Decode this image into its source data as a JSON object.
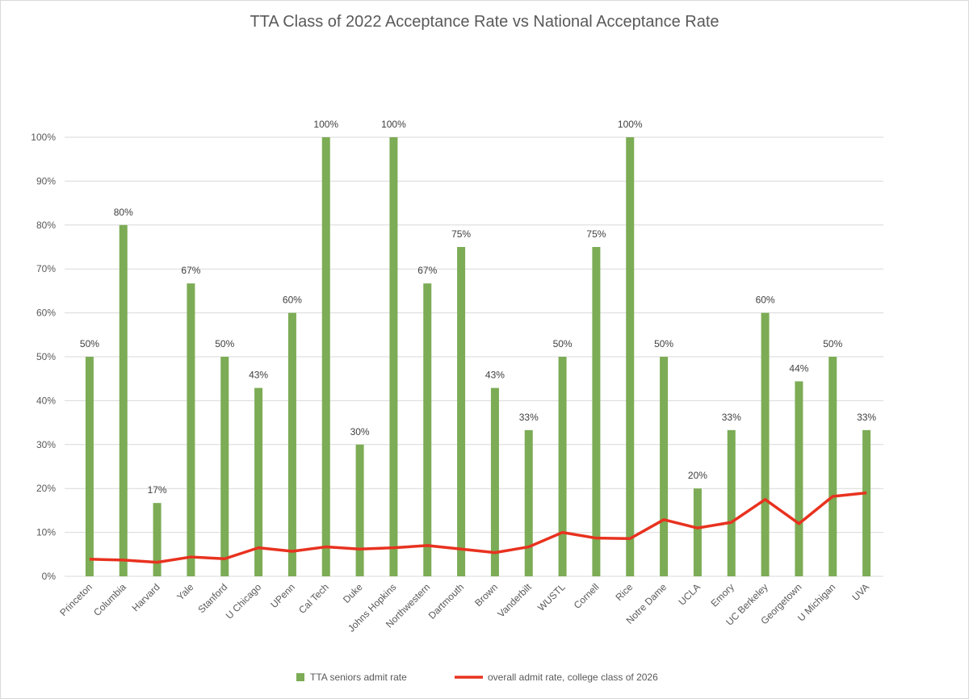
{
  "chart_data": {
    "type": "bar",
    "title": "TTA Class of 2022 Acceptance Rate vs National Acceptance Rate",
    "xlabel": "",
    "ylabel": "",
    "ylim": [
      0,
      100
    ],
    "yticks": [
      "0%",
      "10%",
      "20%",
      "30%",
      "40%",
      "50%",
      "60%",
      "70%",
      "80%",
      "90%",
      "100%"
    ],
    "grid": true,
    "legend_position": "bottom",
    "categories": [
      "Princeton",
      "Columbia",
      "Harvard",
      "Yale",
      "Stanford",
      "U Chicago",
      "UPenn",
      "Cal Tech",
      "Duke",
      "Johns Hopkins",
      "Northwestern",
      "Dartmouth",
      "Brown",
      "Vanderbilt",
      "WUSTL",
      "Cornell",
      "Rice",
      "Notre Dame",
      "UCLA",
      "Emory",
      "UC Berkeley",
      "Georgetown",
      "U Michigan",
      "UVA"
    ],
    "series": [
      {
        "name": "TTA seniors admit rate",
        "type": "bar",
        "color": "#7cac55",
        "values": [
          50,
          80,
          16.7,
          66.7,
          50,
          42.9,
          60,
          100,
          30,
          100,
          66.7,
          75,
          42.9,
          33.3,
          50,
          75,
          100,
          50,
          20,
          33.3,
          60,
          44.4,
          50,
          33.3
        ],
        "labels": [
          "50%",
          "80%",
          "17%",
          "67%",
          "50%",
          "43%",
          "60%",
          "100%",
          "30%",
          "100%",
          "67%",
          "75%",
          "43%",
          "33%",
          "50%",
          "75%",
          "100%",
          "50%",
          "20%",
          "33%",
          "60%",
          "44%",
          "50%",
          "33%"
        ]
      },
      {
        "name": "overall admit rate, college class of 2026",
        "type": "line",
        "color": "#e8321f",
        "values": [
          3.9,
          3.7,
          3.2,
          4.4,
          4.0,
          6.5,
          5.7,
          6.7,
          6.2,
          6.5,
          7.0,
          6.2,
          5.4,
          6.7,
          10.0,
          8.7,
          8.6,
          12.9,
          11.0,
          12.3,
          17.5,
          12.0,
          18.2,
          19.0
        ]
      }
    ]
  }
}
